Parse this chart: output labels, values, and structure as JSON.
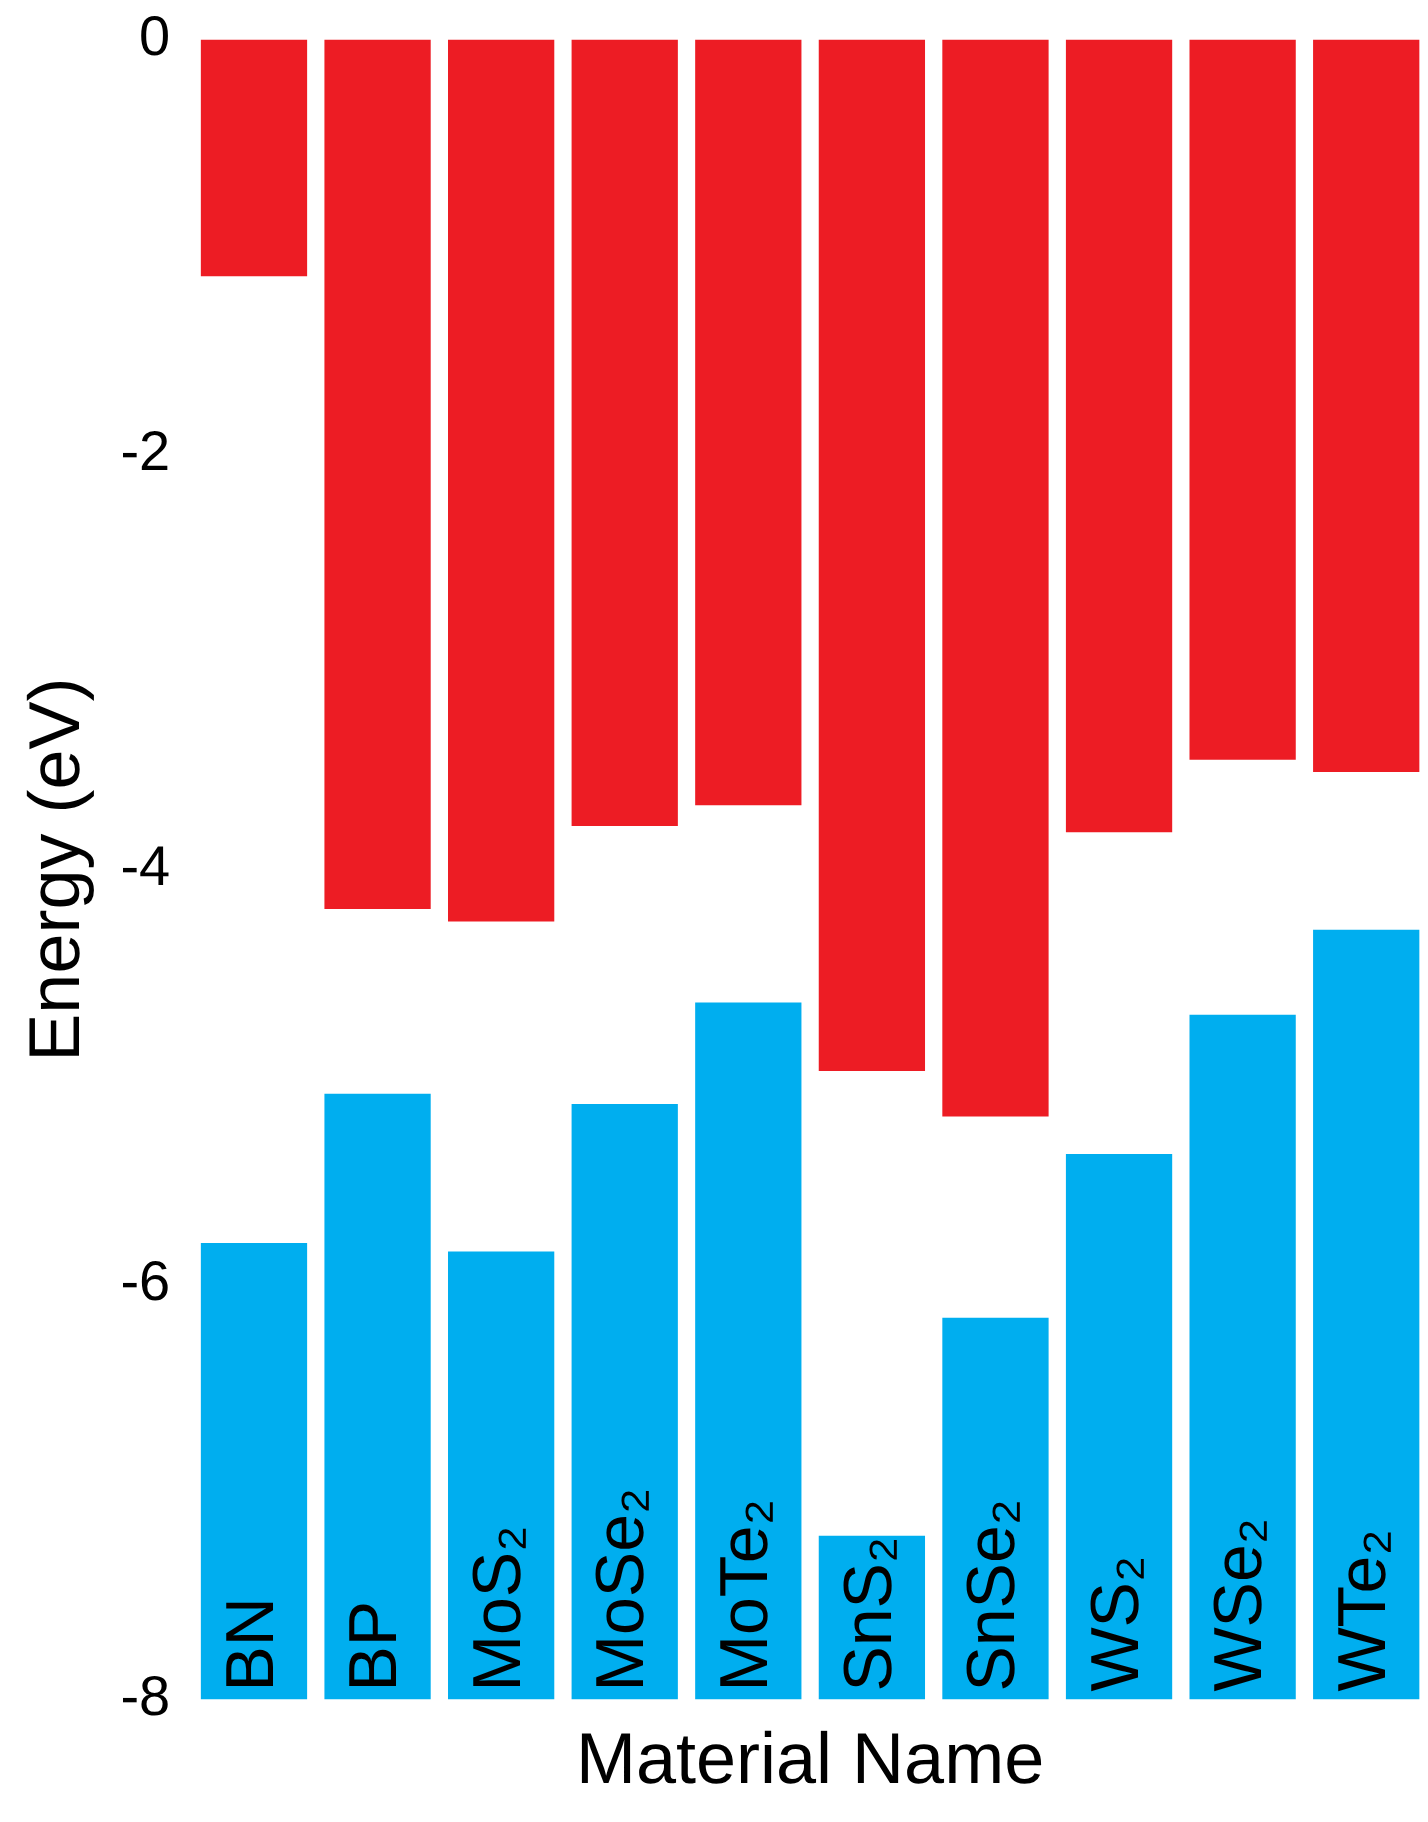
{
  "chart_data": {
    "type": "bar",
    "xlabel": "Material Name",
    "ylabel": "Energy (eV)",
    "categories": [
      "BN",
      "BP",
      "MoS₂",
      "MoSe₂",
      "MoTe₂",
      "SnS₂",
      "SnSe₂",
      "WS₂",
      "WSe₂",
      "WTe₂"
    ],
    "series": [
      {
        "color": "#ed1c24",
        "base": [
          0,
          0,
          0,
          0,
          0,
          0,
          0,
          0,
          0,
          0
        ],
        "values": [
          -1.14,
          -4.19,
          -4.25,
          -3.79,
          -3.69,
          -4.97,
          -5.19,
          -3.82,
          -3.47,
          -3.53
        ]
      },
      {
        "color": "#00aeef",
        "base": [
          -8,
          -8,
          -8,
          -8,
          -8,
          -8,
          -8,
          -8,
          -8,
          -8
        ],
        "values": [
          2.2,
          2.92,
          2.16,
          2.87,
          3.36,
          0.79,
          1.84,
          2.63,
          3.3,
          3.71
        ]
      }
    ],
    "ylim": [
      -8,
      0
    ],
    "yticks": [
      -8,
      -6,
      -4,
      -2,
      0
    ],
    "grid": false,
    "legend": false,
    "tick_labels": "y"
  }
}
